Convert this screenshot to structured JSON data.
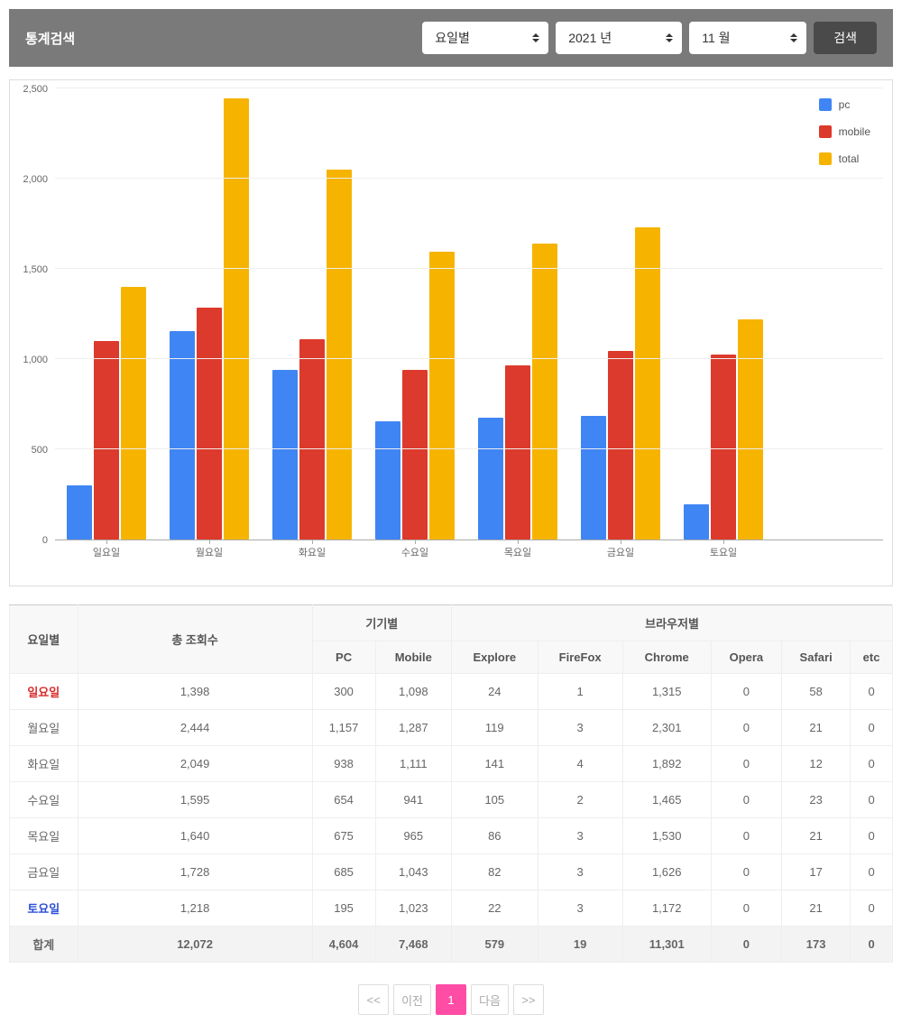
{
  "search": {
    "title": "통계검색",
    "period_select": "요일별",
    "year_select": "2021 년",
    "month_select": "11 월",
    "button_label": "검색"
  },
  "chart": {
    "type": "bar",
    "y_max": 2500,
    "y_ticks": [
      0,
      500,
      1000,
      1500,
      2000,
      2500
    ],
    "y_tick_labels": [
      "0",
      "500",
      "1,000",
      "1,500",
      "2,000",
      "2,500"
    ],
    "categories": [
      "일요일",
      "월요일",
      "화요일",
      "수요일",
      "목요일",
      "금요일",
      "토요일"
    ],
    "series": [
      {
        "name": "pc",
        "color": "#3f85f4",
        "values": [
          300,
          1157,
          938,
          654,
          675,
          685,
          195
        ]
      },
      {
        "name": "mobile",
        "color": "#dc3a2c",
        "values": [
          1098,
          1287,
          1111,
          941,
          965,
          1043,
          1023
        ]
      },
      {
        "name": "total",
        "color": "#f6b400",
        "values": [
          1398,
          2444,
          2049,
          1595,
          1640,
          1728,
          1218
        ]
      }
    ],
    "grid_color": "#eeeeee",
    "background_color": "#ffffff"
  },
  "table": {
    "header_groups": {
      "day": "요일별",
      "total_views": "총 조회수",
      "device": "기기별",
      "browser": "브라우저별"
    },
    "sub_headers": {
      "pc": "PC",
      "mobile": "Mobile",
      "explore": "Explore",
      "firefox": "FireFox",
      "chrome": "Chrome",
      "opera": "Opera",
      "safari": "Safari",
      "etc": "etc"
    },
    "rows": [
      {
        "day": "일요일",
        "total": "1,398",
        "pc": "300",
        "mobile": "1,098",
        "explore": "24",
        "firefox": "1",
        "chrome": "1,315",
        "opera": "0",
        "safari": "58",
        "etc": "0",
        "kind": "sunday"
      },
      {
        "day": "월요일",
        "total": "2,444",
        "pc": "1,157",
        "mobile": "1,287",
        "explore": "119",
        "firefox": "3",
        "chrome": "2,301",
        "opera": "0",
        "safari": "21",
        "etc": "0",
        "kind": ""
      },
      {
        "day": "화요일",
        "total": "2,049",
        "pc": "938",
        "mobile": "1,111",
        "explore": "141",
        "firefox": "4",
        "chrome": "1,892",
        "opera": "0",
        "safari": "12",
        "etc": "0",
        "kind": ""
      },
      {
        "day": "수요일",
        "total": "1,595",
        "pc": "654",
        "mobile": "941",
        "explore": "105",
        "firefox": "2",
        "chrome": "1,465",
        "opera": "0",
        "safari": "23",
        "etc": "0",
        "kind": ""
      },
      {
        "day": "목요일",
        "total": "1,640",
        "pc": "675",
        "mobile": "965",
        "explore": "86",
        "firefox": "3",
        "chrome": "1,530",
        "opera": "0",
        "safari": "21",
        "etc": "0",
        "kind": ""
      },
      {
        "day": "금요일",
        "total": "1,728",
        "pc": "685",
        "mobile": "1,043",
        "explore": "82",
        "firefox": "3",
        "chrome": "1,626",
        "opera": "0",
        "safari": "17",
        "etc": "0",
        "kind": ""
      },
      {
        "day": "토요일",
        "total": "1,218",
        "pc": "195",
        "mobile": "1,023",
        "explore": "22",
        "firefox": "3",
        "chrome": "1,172",
        "opera": "0",
        "safari": "21",
        "etc": "0",
        "kind": "saturday"
      }
    ],
    "total_row": {
      "day": "합계",
      "total": "12,072",
      "pc": "4,604",
      "mobile": "7,468",
      "explore": "579",
      "firefox": "19",
      "chrome": "11,301",
      "opera": "0",
      "safari": "173",
      "etc": "0"
    }
  },
  "pagination": {
    "first": "<<",
    "prev": "이전",
    "pages": [
      "1"
    ],
    "next": "다음",
    "last": ">>",
    "active_index": 0
  }
}
